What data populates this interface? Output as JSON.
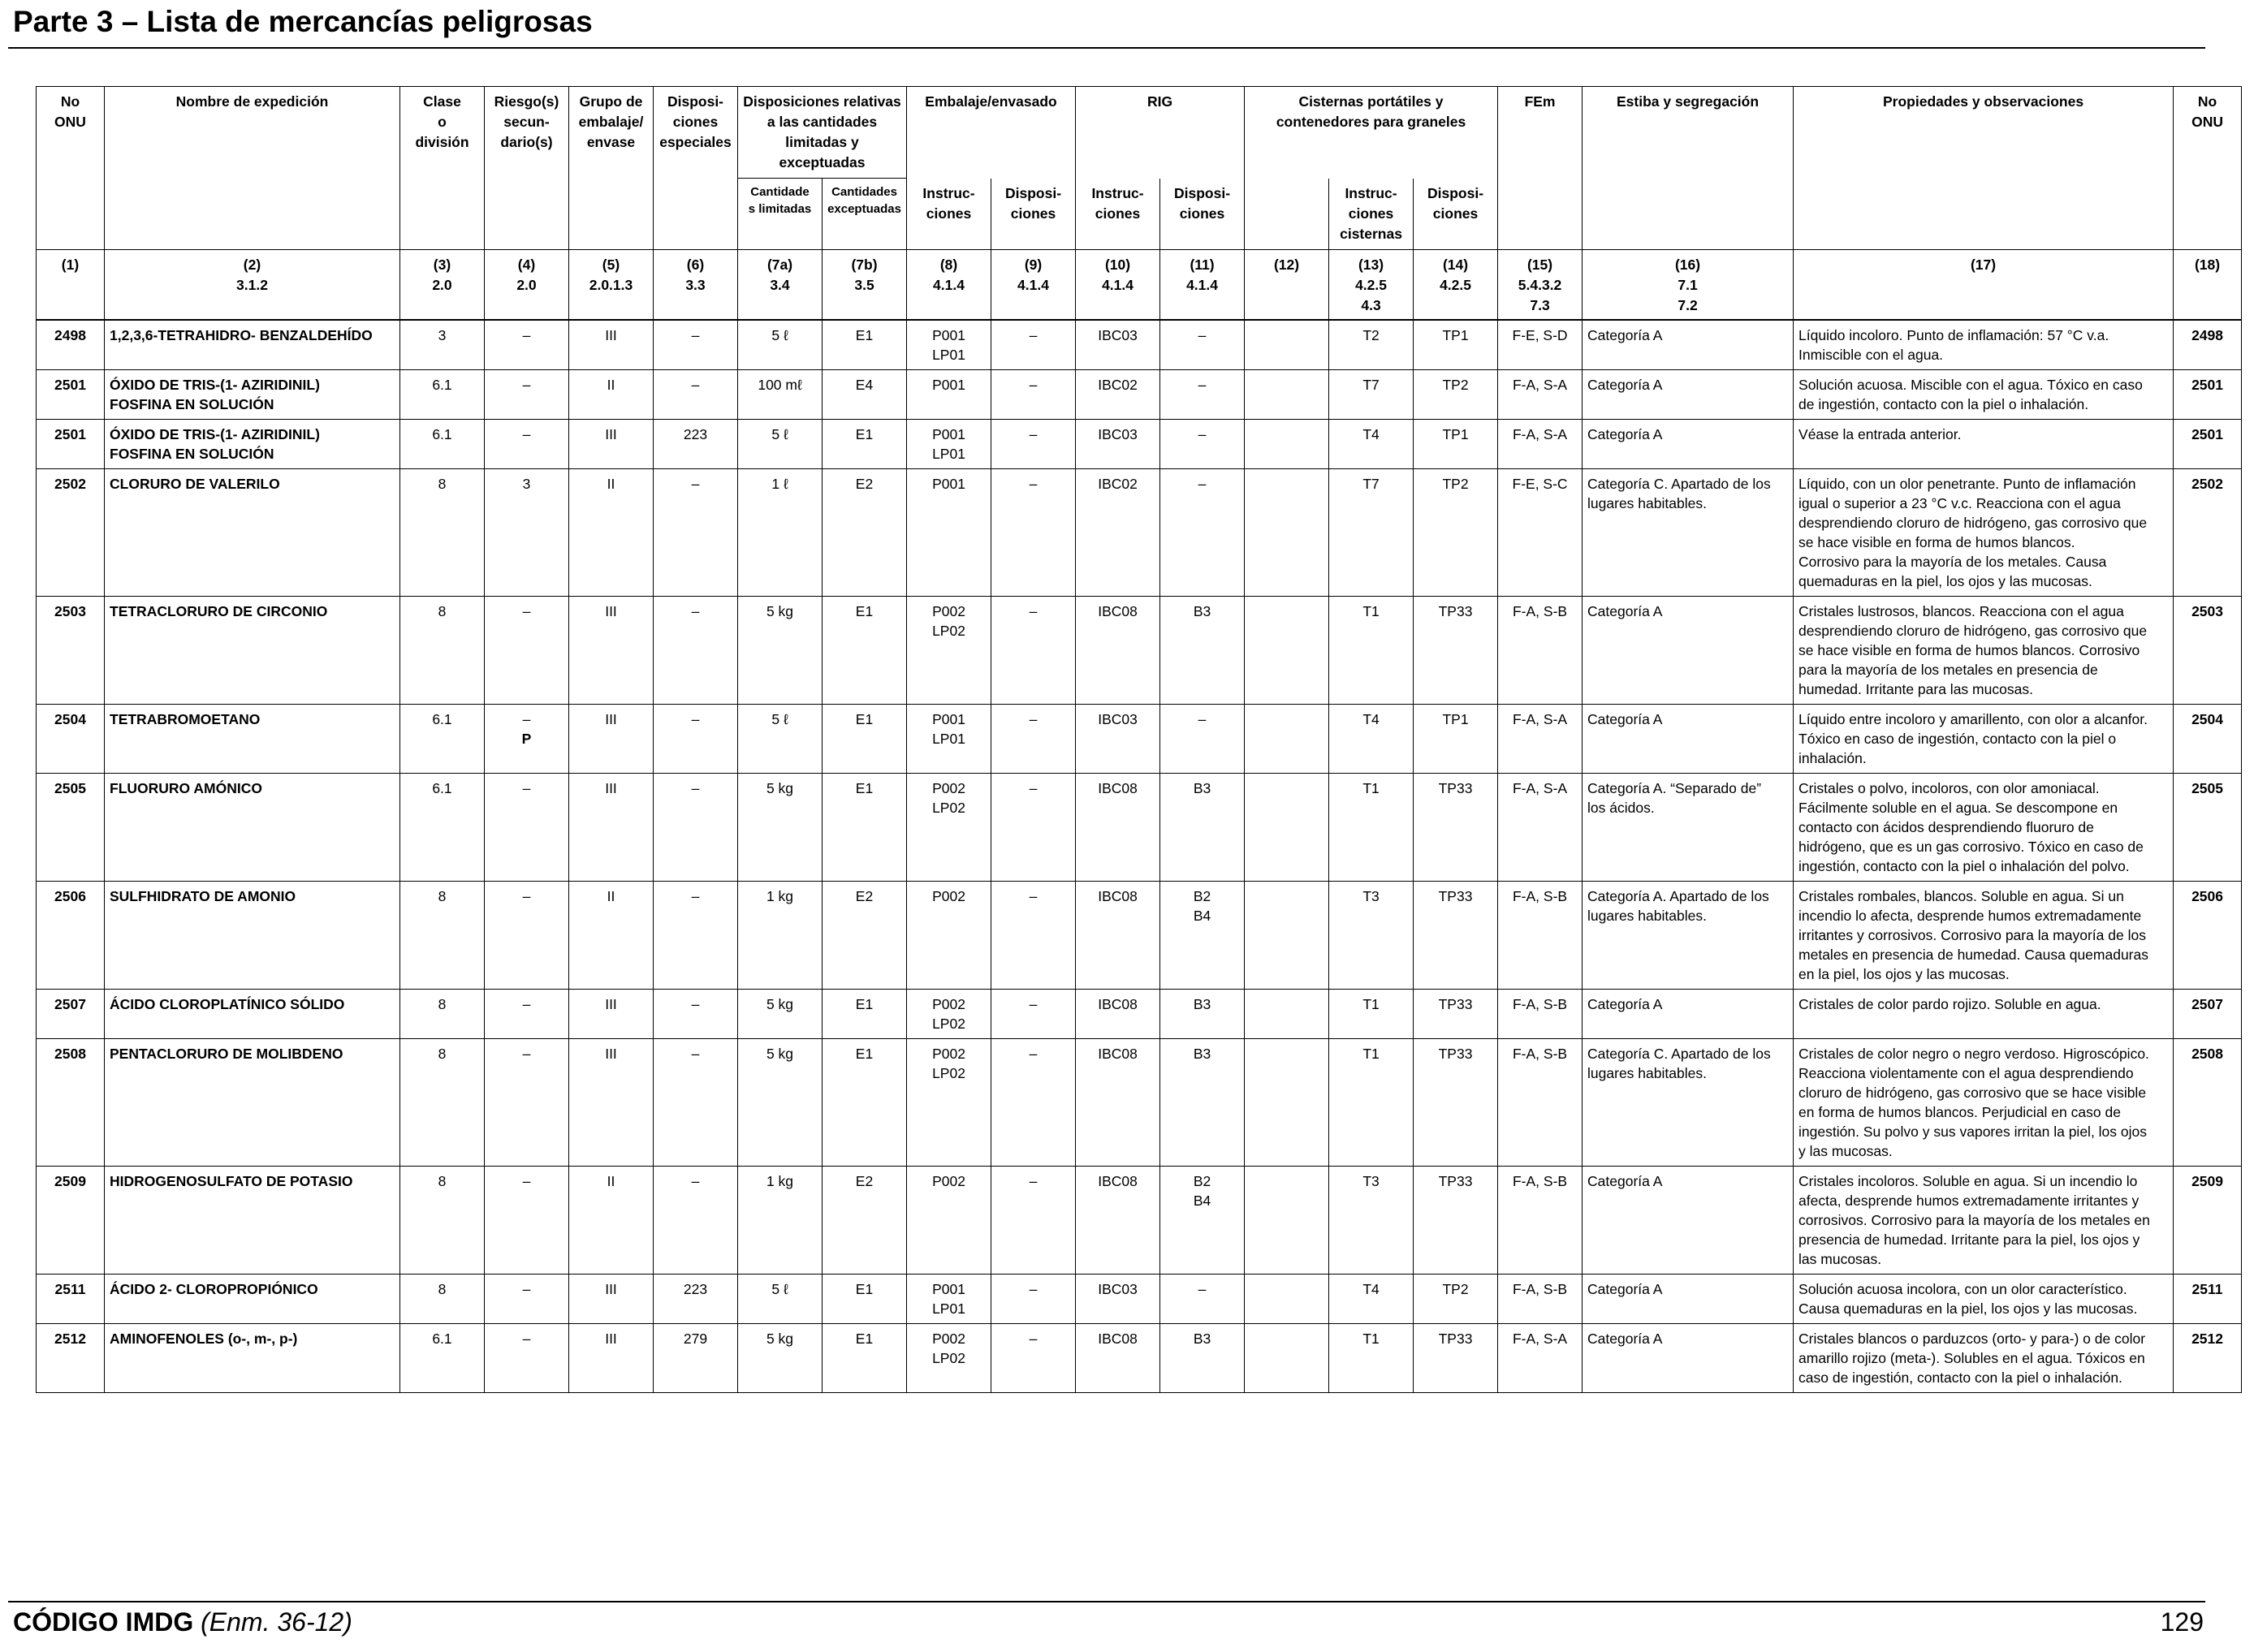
{
  "page": {
    "section_title": "Parte 3 – Lista de mercancías peligrosas",
    "footer_code": "CÓDIGO IMDG",
    "footer_amendment": "(Enm. 36-12)",
    "page_number": "129"
  },
  "headers": {
    "un_no": [
      "No",
      "ONU"
    ],
    "name": "Nombre de expedición",
    "class": [
      "Clase",
      "o",
      "división"
    ],
    "subsidiary": [
      "Riesgo(s)",
      "secun-",
      "dario(s)"
    ],
    "packing_group": [
      "Grupo de",
      "embalaje/",
      "envase"
    ],
    "special_provisions": [
      "Disposi-",
      "ciones",
      "especiales"
    ],
    "limited_excepted": [
      "Disposiciones relativas",
      "a las cantidades",
      "limitadas y exceptuadas"
    ],
    "limited_qty": [
      "Cantidade",
      "s limitadas"
    ],
    "excepted_qty": [
      "Cantidades",
      "exceptuadas"
    ],
    "packing": "Embalaje/envasado",
    "instructions": [
      "Instruc-",
      "ciones"
    ],
    "provisions": [
      "Disposi-",
      "ciones"
    ],
    "ibc": "RIG",
    "tanks": [
      "Cisternas portátiles y",
      "contenedores para graneles"
    ],
    "tank_instructions": [
      "Instruc-",
      "ciones",
      "cisternas"
    ],
    "ems": "FEm",
    "stowage": "Estiba y segregación",
    "properties": "Propiedades y observaciones",
    "refs": [
      [
        "(1)"
      ],
      [
        "(2)",
        "3.1.2"
      ],
      [
        "(3)",
        "2.0"
      ],
      [
        "(4)",
        "2.0"
      ],
      [
        "(5)",
        "2.0.1.3"
      ],
      [
        "(6)",
        "3.3"
      ],
      [
        "(7a)",
        "3.4"
      ],
      [
        "(7b)",
        "3.5"
      ],
      [
        "(8)",
        "4.1.4"
      ],
      [
        "(9)",
        "4.1.4"
      ],
      [
        "(10)",
        "4.1.4"
      ],
      [
        "(11)",
        "4.1.4"
      ],
      [
        "(12)"
      ],
      [
        "(13)",
        "4.2.5",
        "4.3"
      ],
      [
        "(14)",
        "4.2.5"
      ],
      [
        "(15)",
        "5.4.3.2",
        "7.3"
      ],
      [
        "(16)",
        "7.1",
        "7.2"
      ],
      [
        "(17)"
      ],
      [
        "(18)"
      ]
    ]
  },
  "rows": [
    {
      "un": "2498",
      "name": [
        "1,2,3,6-TETRAHIDRO- BENZALDEHÍDO"
      ],
      "cls": "3",
      "sub": [
        "–"
      ],
      "pg": "III",
      "sp": "–",
      "lq": "5 ℓ",
      "eq": "E1",
      "pi": [
        "P001",
        "LP01"
      ],
      "pp": "–",
      "ibc": "IBC03",
      "ibcp": [
        "–"
      ],
      "bulk": "",
      "tank": "T2",
      "tp": "TP1",
      "ems": "F-E, S-D",
      "stow": [
        "Categoría A"
      ],
      "props": [
        "Líquido incoloro. Punto de inflamación: 57 °C v.a.",
        "Inmiscible con el agua."
      ]
    },
    {
      "un": "2501",
      "name": [
        "ÓXIDO DE TRIS-(1- AZIRIDINIL)",
        "FOSFINA EN SOLUCIÓN"
      ],
      "cls": "6.1",
      "sub": [
        "–"
      ],
      "pg": "II",
      "sp": "–",
      "lq": "100 mℓ",
      "eq": "E4",
      "pi": [
        "P001"
      ],
      "pp": "–",
      "ibc": "IBC02",
      "ibcp": [
        "–"
      ],
      "bulk": "",
      "tank": "T7",
      "tp": "TP2",
      "ems": "F-A, S-A",
      "stow": [
        "Categoría A"
      ],
      "props": [
        "Solución acuosa. Miscible con el agua. Tóxico en caso",
        "de ingestión, contacto con la piel o inhalación."
      ]
    },
    {
      "un": "2501",
      "name": [
        "ÓXIDO DE TRIS-(1- AZIRIDINIL)",
        "FOSFINA EN SOLUCIÓN"
      ],
      "cls": "6.1",
      "sub": [
        "–"
      ],
      "pg": "III",
      "sp": "223",
      "lq": "5 ℓ",
      "eq": "E1",
      "pi": [
        "P001",
        "LP01"
      ],
      "pp": "–",
      "ibc": "IBC03",
      "ibcp": [
        "–"
      ],
      "bulk": "",
      "tank": "T4",
      "tp": "TP1",
      "ems": "F-A, S-A",
      "stow": [
        "Categoría A"
      ],
      "props": [
        "Véase la entrada anterior."
      ]
    },
    {
      "un": "2502",
      "name": [
        "CLORURO DE VALERILO"
      ],
      "cls": "8",
      "sub": [
        "3"
      ],
      "pg": "II",
      "sp": "–",
      "lq": "1 ℓ",
      "eq": "E2",
      "pi": [
        "P001"
      ],
      "pp": "–",
      "ibc": "IBC02",
      "ibcp": [
        "–"
      ],
      "bulk": "",
      "tank": "T7",
      "tp": "TP2",
      "ems": "F-E, S-C",
      "stow": [
        "Categoría C. Apartado de los",
        "lugares habitables."
      ],
      "props": [
        "Líquido, con un olor penetrante. Punto de inflamación",
        "igual o superior a 23 °C v.c. Reacciona con el agua",
        "desprendiendo cloruro de hidrógeno, gas corrosivo que",
        "se hace visible en forma de humos blancos.",
        "Corrosivo para la mayoría de los metales. Causa",
        "quemaduras en la piel, los ojos y las mucosas."
      ]
    },
    {
      "un": "2503",
      "name": [
        "TETRACLORURO DE CIRCONIO"
      ],
      "cls": "8",
      "sub": [
        "–"
      ],
      "pg": "III",
      "sp": "–",
      "lq": "5 kg",
      "eq": "E1",
      "pi": [
        "P002",
        "LP02"
      ],
      "pp": "–",
      "ibc": "IBC08",
      "ibcp": [
        "B3"
      ],
      "bulk": "",
      "tank": "T1",
      "tp": "TP33",
      "ems": "F-A, S-B",
      "stow": [
        "Categoría A"
      ],
      "props": [
        "Cristales lustrosos, blancos. Reacciona con el agua",
        "desprendiendo cloruro de hidrógeno, gas corrosivo que",
        "se hace visible en forma de humos blancos. Corrosivo",
        "para la mayoría de los metales en presencia de",
        "humedad. Irritante para las mucosas."
      ]
    },
    {
      "un": "2504",
      "name": [
        "TETRABROMOETANO"
      ],
      "cls": "6.1",
      "sub": [
        "–"
      ],
      "mark": "P",
      "pg": "III",
      "sp": "–",
      "lq": "5 ℓ",
      "eq": "E1",
      "pi": [
        "P001",
        "LP01"
      ],
      "pp": "–",
      "ibc": "IBC03",
      "ibcp": [
        "–"
      ],
      "bulk": "",
      "tank": "T4",
      "tp": "TP1",
      "ems": "F-A, S-A",
      "stow": [
        "Categoría A"
      ],
      "props": [
        "Líquido entre incoloro y amarillento, con olor a alcanfor.",
        "Tóxico en caso de ingestión, contacto con la piel o",
        "inhalación."
      ]
    },
    {
      "un": "2505",
      "name": [
        "FLUORURO AMÓNICO"
      ],
      "cls": "6.1",
      "sub": [
        "–"
      ],
      "pg": "III",
      "sp": "–",
      "lq": "5 kg",
      "eq": "E1",
      "pi": [
        "P002",
        "LP02"
      ],
      "pp": "–",
      "ibc": "IBC08",
      "ibcp": [
        "B3"
      ],
      "bulk": "",
      "tank": "T1",
      "tp": "TP33",
      "ems": "F-A, S-A",
      "stow": [
        "Categoría A. “Separado de”",
        "los ácidos."
      ],
      "props": [
        "Cristales o polvo, incoloros, con olor amoniacal.",
        "Fácilmente soluble en el agua. Se descompone en",
        "contacto con ácidos desprendiendo fluoruro de",
        "hidrógeno, que es un gas corrosivo. Tóxico en caso de",
        "ingestión, contacto con la piel o inhalación del polvo."
      ]
    },
    {
      "un": "2506",
      "name": [
        "SULFHIDRATO DE AMONIO"
      ],
      "cls": "8",
      "sub": [
        "–"
      ],
      "pg": "II",
      "sp": "–",
      "lq": "1 kg",
      "eq": "E2",
      "pi": [
        "P002"
      ],
      "pp": "–",
      "ibc": "IBC08",
      "ibcp": [
        "B2",
        "B4"
      ],
      "bulk": "",
      "tank": "T3",
      "tp": "TP33",
      "ems": "F-A, S-B",
      "stow": [
        "Categoría A. Apartado de los",
        "lugares habitables."
      ],
      "props": [
        "Cristales rombales, blancos. Soluble en agua. Si un",
        "incendio lo afecta, desprende humos extremadamente",
        "irritantes y corrosivos. Corrosivo para la mayoría de los",
        "metales en presencia de humedad. Causa quemaduras",
        "en la piel, los ojos y las mucosas."
      ]
    },
    {
      "un": "2507",
      "name": [
        "ÁCIDO CLOROPLATÍNICO SÓLIDO"
      ],
      "cls": "8",
      "sub": [
        "–"
      ],
      "pg": "III",
      "sp": "–",
      "lq": "5 kg",
      "eq": "E1",
      "pi": [
        "P002",
        "LP02"
      ],
      "pp": "–",
      "ibc": "IBC08",
      "ibcp": [
        "B3"
      ],
      "bulk": "",
      "tank": "T1",
      "tp": "TP33",
      "ems": "F-A, S-B",
      "stow": [
        "Categoría A"
      ],
      "props": [
        "Cristales de color pardo rojizo. Soluble en agua."
      ]
    },
    {
      "un": "2508",
      "name": [
        "PENTACLORURO DE MOLIBDENO"
      ],
      "cls": "8",
      "sub": [
        "–"
      ],
      "pg": "III",
      "sp": "–",
      "lq": "5 kg",
      "eq": "E1",
      "pi": [
        "P002",
        "LP02"
      ],
      "pp": "–",
      "ibc": "IBC08",
      "ibcp": [
        "B3"
      ],
      "bulk": "",
      "tank": "T1",
      "tp": "TP33",
      "ems": "F-A, S-B",
      "stow": [
        "Categoría C. Apartado de los",
        "lugares habitables."
      ],
      "props": [
        "Cristales de color negro o negro verdoso. Higroscópico.",
        "Reacciona violentamente con el agua desprendiendo",
        "cloruro de hidrógeno, gas corrosivo que se hace visible",
        "en forma de humos blancos. Perjudicial en caso de",
        "ingestión. Su polvo y sus vapores irritan la piel, los ojos",
        "y las mucosas."
      ]
    },
    {
      "un": "2509",
      "name": [
        "HIDROGENOSULFATO DE POTASIO"
      ],
      "cls": "8",
      "sub": [
        "–"
      ],
      "pg": "II",
      "sp": "–",
      "lq": "1 kg",
      "eq": "E2",
      "pi": [
        "P002"
      ],
      "pp": "–",
      "ibc": "IBC08",
      "ibcp": [
        "B2",
        "B4"
      ],
      "bulk": "",
      "tank": "T3",
      "tp": "TP33",
      "ems": "F-A, S-B",
      "stow": [
        "Categoría A"
      ],
      "props": [
        "Cristales incoloros. Soluble en agua. Si un incendio lo",
        "afecta, desprende humos extremadamente irritantes y",
        "corrosivos. Corrosivo para la mayoría de los metales en",
        "presencia de humedad. Irritante para la piel, los ojos y",
        "las mucosas."
      ]
    },
    {
      "un": "2511",
      "name": [
        "ÁCIDO 2- CLOROPROPIÓNICO"
      ],
      "cls": "8",
      "sub": [
        "–"
      ],
      "pg": "III",
      "sp": "223",
      "lq": "5 ℓ",
      "eq": "E1",
      "pi": [
        "P001",
        "LP01"
      ],
      "pp": "–",
      "ibc": "IBC03",
      "ibcp": [
        "–"
      ],
      "bulk": "",
      "tank": "T4",
      "tp": "TP2",
      "ems": "F-A, S-B",
      "stow": [
        "Categoría A"
      ],
      "props": [
        "Solución acuosa incolora, con un olor característico.",
        "Causa quemaduras en la piel, los ojos y las mucosas."
      ]
    },
    {
      "un": "2512",
      "name": [
        "AMINOFENOLES (o-, m-, p-)"
      ],
      "cls": "6.1",
      "sub": [
        "–"
      ],
      "pg": "III",
      "sp": "279",
      "lq": "5 kg",
      "eq": "E1",
      "pi": [
        "P002",
        "LP02"
      ],
      "pp": "–",
      "ibc": "IBC08",
      "ibcp": [
        "B3"
      ],
      "bulk": "",
      "tank": "T1",
      "tp": "TP33",
      "ems": "F-A, S-A",
      "stow": [
        "Categoría A"
      ],
      "props": [
        "Cristales blancos o parduzcos (orto- y para-) o de color",
        "amarillo rojizo (meta-). Solubles en el agua. Tóxicos en",
        "caso de ingestión, contacto con la piel o inhalación."
      ]
    }
  ]
}
